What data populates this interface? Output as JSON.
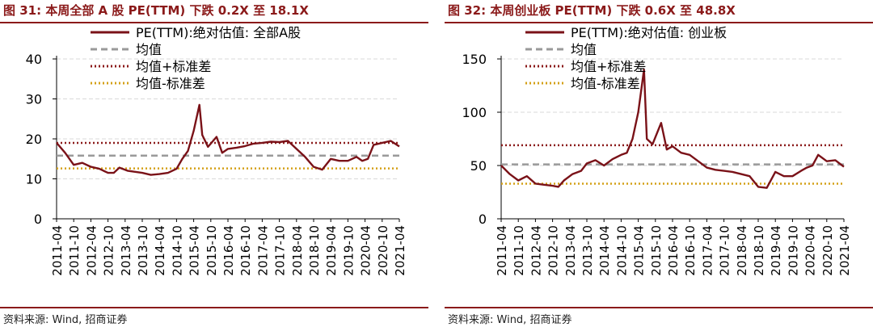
{
  "charts": [
    {
      "title": "图 31:  本周全部 A 股 PE(TTM)  下跌 0.2X 至 18.1X",
      "source": "资料来源:  Wind,  招商证券"
    },
    {
      "title": "图 32:  本周创业板 PE(TTM)  下跌 0.6X 至 48.8X",
      "source": "资料来源:  Wind,  招商证券"
    }
  ],
  "colors": {
    "title": "#8b1a1a",
    "line": "#7a1218",
    "mean": "#9a9a9a",
    "upper": "#8b1a1a",
    "lower": "#d4a017"
  },
  "chart_data": [
    {
      "type": "line",
      "ylim": [
        0,
        40
      ],
      "yticks": [
        0,
        10,
        20,
        30,
        40
      ],
      "xticks": [
        "2011-04",
        "2011-10",
        "2012-04",
        "2012-10",
        "2013-04",
        "2013-10",
        "2014-04",
        "2014-10",
        "2015-04",
        "2015-10",
        "2016-04",
        "2016-10",
        "2017-04",
        "2017-10",
        "2018-04",
        "2018-10",
        "2019-04",
        "2019-10",
        "2020-04",
        "2020-10",
        "2021-04"
      ],
      "grid": true,
      "legend_position": "top",
      "series": [
        {
          "name": "PE(TTM):绝对估值: 全部A股",
          "style": "solid",
          "x": [
            "2011-04",
            "2011-07",
            "2011-10",
            "2012-01",
            "2012-04",
            "2012-07",
            "2012-10",
            "2012-12",
            "2013-02",
            "2013-05",
            "2013-08",
            "2013-10",
            "2014-01",
            "2014-04",
            "2014-07",
            "2014-10",
            "2014-12",
            "2015-02",
            "2015-04",
            "2015-06",
            "2015-07",
            "2015-09",
            "2015-12",
            "2016-02",
            "2016-04",
            "2016-07",
            "2016-10",
            "2017-01",
            "2017-04",
            "2017-07",
            "2017-10",
            "2018-01",
            "2018-04",
            "2018-07",
            "2018-10",
            "2019-01",
            "2019-04",
            "2019-07",
            "2019-10",
            "2020-01",
            "2020-03",
            "2020-05",
            "2020-07",
            "2020-10",
            "2021-01",
            "2021-04"
          ],
          "y": [
            19,
            16.5,
            13.5,
            14,
            13,
            12.5,
            11.5,
            11.5,
            12.8,
            12,
            11.7,
            11.5,
            11,
            11.2,
            11.5,
            12.5,
            15,
            17,
            22,
            28.5,
            21,
            18,
            20.5,
            16.5,
            17.5,
            17.8,
            18.2,
            18.8,
            19,
            19.3,
            19.2,
            19.5,
            17.5,
            15.5,
            13,
            12.3,
            15,
            14.5,
            14.5,
            15.5,
            14.5,
            15,
            18.5,
            19,
            19.5,
            18.1
          ]
        },
        {
          "name": "均值",
          "style": "dashed",
          "value": 15.8
        },
        {
          "name": "均值+标准差",
          "style": "dotted",
          "value": 19.0
        },
        {
          "name": "均值-标准差",
          "style": "dotted",
          "value": 12.6
        }
      ]
    },
    {
      "type": "line",
      "ylim": [
        0,
        150
      ],
      "yticks": [
        0,
        50,
        100,
        150
      ],
      "xticks": [
        "2011-04",
        "2011-10",
        "2012-04",
        "2012-10",
        "2013-04",
        "2013-10",
        "2014-04",
        "2014-10",
        "2015-04",
        "2015-10",
        "2016-04",
        "2016-10",
        "2017-04",
        "2017-10",
        "2018-04",
        "2018-10",
        "2019-04",
        "2019-10",
        "2020-04",
        "2020-10",
        "2021-04"
      ],
      "grid": true,
      "legend_position": "top",
      "series": [
        {
          "name": "PE(TTM):绝对估值: 创业板",
          "style": "solid",
          "x": [
            "2011-04",
            "2011-07",
            "2011-10",
            "2012-01",
            "2012-04",
            "2012-07",
            "2012-10",
            "2012-12",
            "2013-02",
            "2013-05",
            "2013-08",
            "2013-10",
            "2014-01",
            "2014-04",
            "2014-07",
            "2014-10",
            "2014-12",
            "2015-02",
            "2015-04",
            "2015-06",
            "2015-07",
            "2015-09",
            "2015-12",
            "2016-02",
            "2016-04",
            "2016-07",
            "2016-10",
            "2017-01",
            "2017-04",
            "2017-07",
            "2017-10",
            "2018-01",
            "2018-04",
            "2018-07",
            "2018-10",
            "2019-01",
            "2019-04",
            "2019-07",
            "2019-10",
            "2020-01",
            "2020-03",
            "2020-05",
            "2020-07",
            "2020-10",
            "2021-01",
            "2021-04"
          ],
          "y": [
            50,
            42,
            36,
            40,
            33,
            32,
            31,
            30,
            36,
            42,
            45,
            52,
            55,
            50,
            56,
            60,
            62,
            75,
            100,
            140,
            75,
            70,
            90,
            65,
            68,
            62,
            60,
            54,
            48,
            46,
            45,
            44,
            42,
            40,
            30,
            29,
            44,
            40,
            40,
            45,
            48,
            50,
            60,
            54,
            55,
            48.8
          ]
        },
        {
          "name": "均值",
          "style": "dashed",
          "value": 51
        },
        {
          "name": "均值+标准差",
          "style": "dotted",
          "value": 69
        },
        {
          "name": "均值-标准差",
          "style": "dotted",
          "value": 33
        }
      ]
    }
  ]
}
